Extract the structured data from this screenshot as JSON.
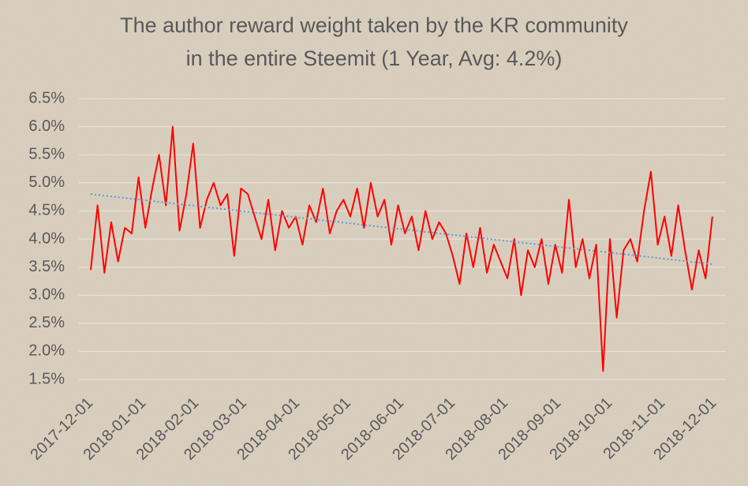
{
  "chart_data": {
    "type": "line",
    "title": [
      "The author reward weight taken by the KR community",
      "in the entire Steemit (1 Year, Avg: 4.2%)"
    ],
    "x": [
      "2017-12-01",
      "2017-12-05",
      "2017-12-09",
      "2017-12-13",
      "2017-12-17",
      "2017-12-21",
      "2017-12-25",
      "2017-12-29",
      "2018-01-02",
      "2018-01-06",
      "2018-01-10",
      "2018-01-14",
      "2018-01-18",
      "2018-01-22",
      "2018-01-26",
      "2018-01-30",
      "2018-02-03",
      "2018-02-07",
      "2018-02-11",
      "2018-02-15",
      "2018-02-19",
      "2018-02-23",
      "2018-02-27",
      "2018-03-03",
      "2018-03-07",
      "2018-03-11",
      "2018-03-15",
      "2018-03-19",
      "2018-03-23",
      "2018-03-27",
      "2018-03-31",
      "2018-04-04",
      "2018-04-08",
      "2018-04-12",
      "2018-04-16",
      "2018-04-20",
      "2018-04-24",
      "2018-04-28",
      "2018-05-02",
      "2018-05-06",
      "2018-05-10",
      "2018-05-14",
      "2018-05-18",
      "2018-05-22",
      "2018-05-26",
      "2018-05-30",
      "2018-06-03",
      "2018-06-07",
      "2018-06-11",
      "2018-06-15",
      "2018-06-19",
      "2018-06-23",
      "2018-06-27",
      "2018-07-01",
      "2018-07-05",
      "2018-07-09",
      "2018-07-13",
      "2018-07-17",
      "2018-07-21",
      "2018-07-25",
      "2018-07-29",
      "2018-08-02",
      "2018-08-06",
      "2018-08-10",
      "2018-08-14",
      "2018-08-18",
      "2018-08-22",
      "2018-08-26",
      "2018-08-30",
      "2018-09-03",
      "2018-09-07",
      "2018-09-11",
      "2018-09-15",
      "2018-09-19",
      "2018-09-23",
      "2018-09-27",
      "2018-10-01",
      "2018-10-05",
      "2018-10-09",
      "2018-10-13",
      "2018-10-17",
      "2018-10-21",
      "2018-10-25",
      "2018-10-29",
      "2018-11-02",
      "2018-11-06",
      "2018-11-10",
      "2018-11-14",
      "2018-11-18",
      "2018-11-22",
      "2018-11-26",
      "2018-11-30"
    ],
    "series": [
      {
        "color": "#ff0000",
        "values": [
          3.45,
          4.6,
          3.4,
          4.3,
          3.6,
          4.2,
          4.1,
          5.1,
          4.2,
          4.9,
          5.5,
          4.6,
          6.0,
          4.15,
          4.8,
          5.7,
          4.2,
          4.7,
          5.0,
          4.6,
          4.8,
          3.7,
          4.9,
          4.8,
          4.4,
          4.0,
          4.7,
          3.8,
          4.5,
          4.2,
          4.4,
          3.9,
          4.6,
          4.3,
          4.9,
          4.1,
          4.5,
          4.7,
          4.4,
          4.9,
          4.2,
          5.0,
          4.4,
          4.7,
          3.9,
          4.6,
          4.1,
          4.4,
          3.8,
          4.5,
          4.0,
          4.3,
          4.1,
          3.7,
          3.2,
          4.1,
          3.5,
          4.2,
          3.4,
          3.9,
          3.6,
          3.3,
          4.0,
          3.0,
          3.8,
          3.5,
          4.0,
          3.2,
          3.9,
          3.4,
          4.7,
          3.5,
          4.0,
          3.3,
          3.9,
          1.65,
          4.0,
          2.6,
          3.8,
          4.0,
          3.6,
          4.5,
          5.2,
          3.9,
          4.4,
          3.7,
          4.6,
          3.8,
          3.1,
          3.8,
          3.3,
          4.4
        ]
      }
    ],
    "trendline": {
      "color": "#5b9bd5",
      "x": [
        "2017-12-01",
        "2018-12-01"
      ],
      "values": [
        4.8,
        3.55
      ]
    },
    "xlim": [
      "2017-12-01",
      "2018-12-01"
    ],
    "xticks": [
      "2017-12-01",
      "2018-01-01",
      "2018-02-01",
      "2018-03-01",
      "2018-04-01",
      "2018-05-01",
      "2018-06-01",
      "2018-07-01",
      "2018-08-01",
      "2018-09-01",
      "2018-10-01",
      "2018-11-01",
      "2018-12-01"
    ],
    "ylim": [
      1.5,
      6.5
    ],
    "yticks": [
      {
        "value": 1.5,
        "label": "1.5%"
      },
      {
        "value": 2.0,
        "label": "2.0%"
      },
      {
        "value": 2.5,
        "label": "2.5%"
      },
      {
        "value": 3.0,
        "label": "3.0%"
      },
      {
        "value": 3.5,
        "label": "3.5%"
      },
      {
        "value": 4.0,
        "label": "4.0%"
      },
      {
        "value": 4.5,
        "label": "4.5%"
      },
      {
        "value": 5.0,
        "label": "5.0%"
      },
      {
        "value": 5.5,
        "label": "5.5%"
      },
      {
        "value": 6.0,
        "label": "6.0%"
      },
      {
        "value": 6.5,
        "label": "6.5%"
      }
    ],
    "grid": true
  }
}
